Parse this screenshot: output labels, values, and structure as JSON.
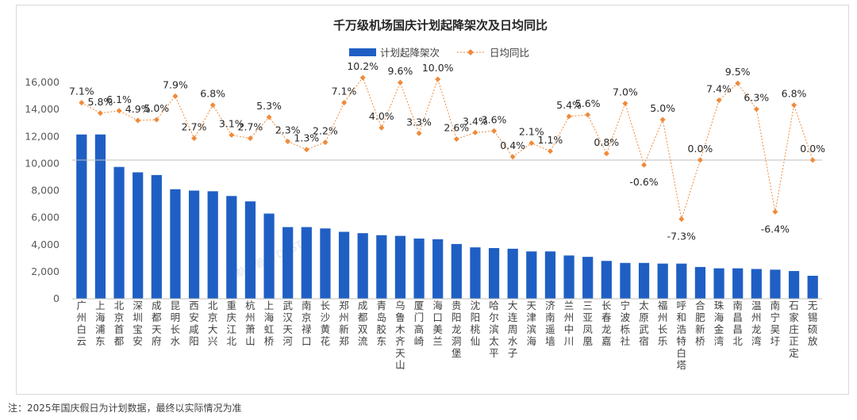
{
  "chart_data": {
    "type": "bar",
    "title": "千万级机场国庆计划起降架次及日均同比",
    "categories": [
      "广州白云",
      "上海浦东",
      "北京首都",
      "深圳宝安",
      "成都天府",
      "昆明长水",
      "西安咸阳",
      "北京大兴",
      "重庆江北",
      "杭州萧山",
      "上海虹桥",
      "武汉天河",
      "南京禄口",
      "长沙黄花",
      "郑州新郑",
      "成都双流",
      "青岛胶东",
      "乌鲁木齐天山",
      "厦门高崎",
      "海口美兰",
      "贵阳龙洞堡",
      "沈阳桃仙",
      "哈尔滨太平",
      "大连周水子",
      "天津滨海",
      "济南遥墙",
      "兰州中川",
      "三亚凤凰",
      "长春龙嘉",
      "宁波栎社",
      "太原武宿",
      "福州长乐",
      "呼和浩特白塔",
      "合肥新桥",
      "珠海金湾",
      "南昌昌北",
      "温州龙湾",
      "南宁吴圩",
      "石家庄正定",
      "无锡硕放"
    ],
    "series": [
      {
        "name": "计划起降架次",
        "type": "bar",
        "color": "#1f5fc4",
        "values": [
          12150,
          12150,
          9750,
          9350,
          9150,
          8100,
          8000,
          7950,
          7600,
          7200,
          6300,
          5300,
          5300,
          5200,
          4950,
          4850,
          4700,
          4650,
          4450,
          4400,
          4050,
          3800,
          3750,
          3700,
          3500,
          3500,
          3200,
          3100,
          2800,
          2650,
          2650,
          2600,
          2600,
          2350,
          2250,
          2250,
          2200,
          2150,
          2050,
          1700
        ]
      },
      {
        "name": "日均同比",
        "type": "line",
        "color": "#f08a3a",
        "unit": "%",
        "values": [
          7.1,
          5.8,
          6.1,
          4.9,
          5.0,
          7.9,
          2.7,
          6.8,
          3.1,
          2.7,
          5.3,
          2.3,
          1.3,
          2.2,
          7.1,
          10.2,
          4.0,
          9.6,
          3.3,
          10.0,
          2.6,
          3.4,
          3.6,
          0.4,
          2.1,
          1.1,
          5.4,
          5.6,
          0.8,
          7.0,
          -0.6,
          5.0,
          -7.3,
          0.0,
          7.4,
          9.5,
          6.3,
          -6.4,
          6.8,
          0.0
        ],
        "labels": [
          "7.1%",
          "5.8%",
          "6.1%",
          "4.9%",
          "5.0%",
          "7.9%",
          "2.7%",
          "6.8%",
          "3.1%",
          "2.7%",
          "5.3%",
          "2.3%",
          "1.3%",
          "2.2%",
          "7.1%",
          "10.2%",
          "4.0%",
          "9.6%",
          "3.3%",
          "10.0%",
          "2.6%",
          "3.4%",
          "3.6%",
          "0.4%",
          "2.1%",
          "1.1%",
          "5.4%",
          "5.6%",
          "0.8%",
          "7.0%",
          "-0.6%",
          "5.0%",
          "-7.3%",
          "0.0%",
          "7.4%",
          "9.5%",
          "6.3%",
          "-6.4%",
          "6.8%",
          "0.0%"
        ]
      }
    ],
    "y_ticks": [
      "0",
      "2,000",
      "4,000",
      "6,000",
      "8,000",
      "10,000",
      "12,000",
      "14,000",
      "16,000"
    ],
    "ylim": [
      0,
      16000
    ],
    "legend": "top-center",
    "grid": false
  },
  "footnote": "注：2025年国庆假日为计划数据，最终以实际情况为准",
  "watermark": "航班管家 DAST"
}
